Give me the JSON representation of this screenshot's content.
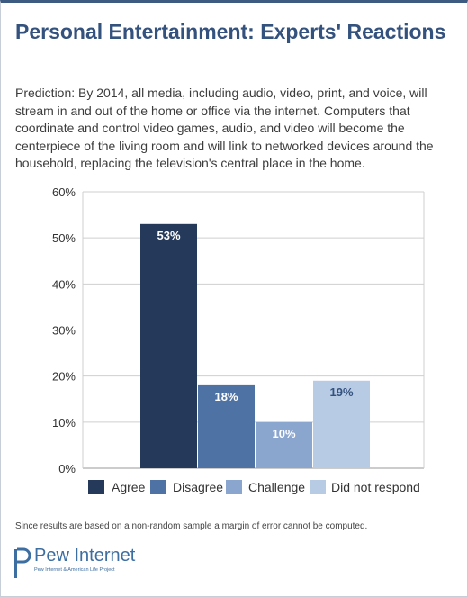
{
  "header": {
    "title": "Personal Entertainment: Experts' Reactions"
  },
  "description": "Prediction: By 2014, all media, including audio, video, print, and voice, will stream in and out of the home or office via the internet. Computers that coordinate and control video games, audio, and video will become the centerpiece of the living room and will link to networked devices around the household, replacing the television's central place in the home.",
  "chart_data": {
    "type": "bar",
    "categories": [
      "Agree",
      "Disagree",
      "Challenge",
      "Did not respond"
    ],
    "values": [
      53,
      18,
      10,
      19
    ],
    "data_labels": [
      "53%",
      "18%",
      "10%",
      "19%"
    ],
    "colors": [
      "#253a5a",
      "#4e72a3",
      "#8aa6cf",
      "#b8cbe5"
    ],
    "label_colors": [
      "#ffffff",
      "#ffffff",
      "#ffffff",
      "#34527e"
    ],
    "ylim": [
      0,
      60
    ],
    "yticks": [
      0,
      10,
      20,
      30,
      40,
      50,
      60
    ],
    "ytick_labels": [
      "0%",
      "10%",
      "20%",
      "30%",
      "40%",
      "50%",
      "60%"
    ],
    "grid": true,
    "legend_position": "bottom"
  },
  "footer": {
    "note": "Since results are based on a non-random sample a margin of error cannot be computed.",
    "logo_text": "Pew Internet",
    "logo_sub": "Pew Internet & American Life Project"
  }
}
